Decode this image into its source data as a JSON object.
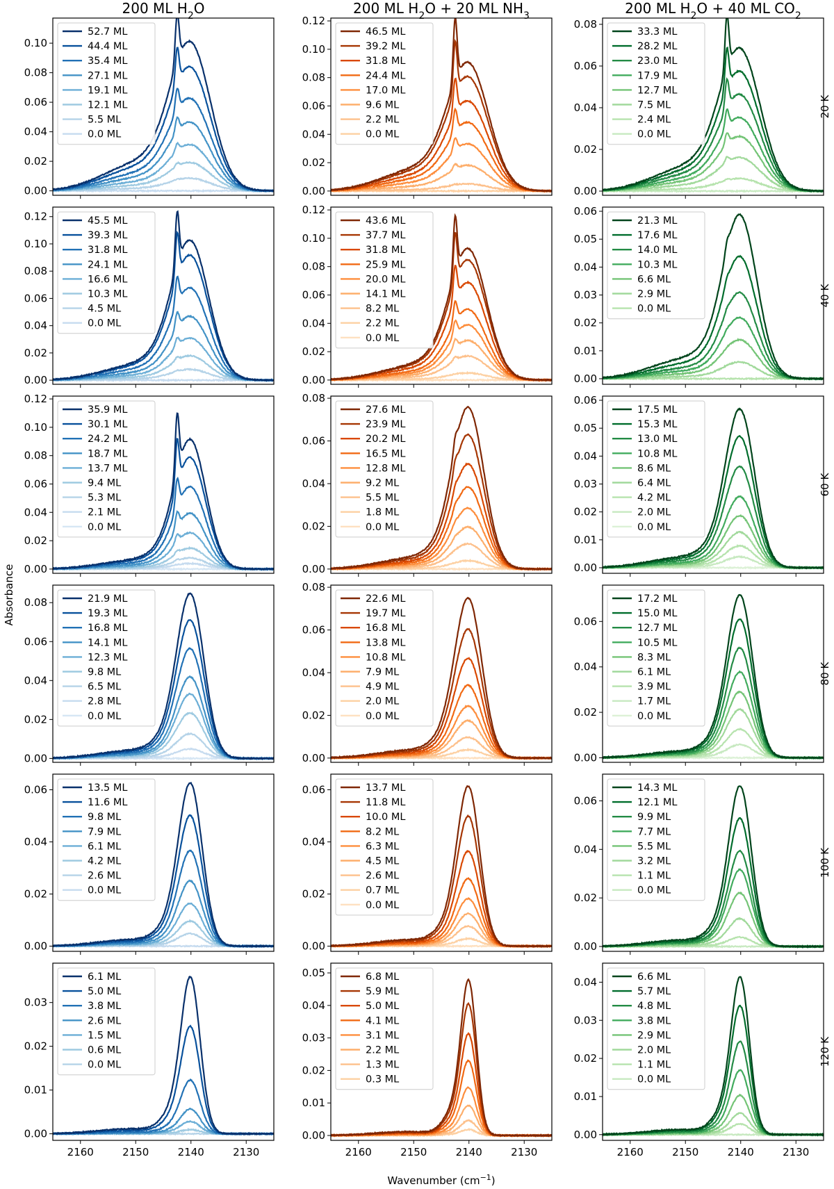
{
  "figure": {
    "column_titles": [
      {
        "pre": "200 ML H",
        "sub": "2",
        "post": "O"
      },
      {
        "pre": "200 ML H",
        "sub": "2",
        "post": "O + 20 ML NH",
        "sub2": "3",
        "post2": ""
      },
      {
        "pre": "200 ML H",
        "sub": "2",
        "post": "O + 40 ML CO",
        "sub2": "2",
        "post2": ""
      }
    ],
    "row_labels": [
      "20 K",
      "40 K",
      "60 K",
      "80 K",
      "100 K",
      "120 K"
    ],
    "xlabel": {
      "pre": "Wavenumber (cm",
      "sup": "−1",
      "post": ")"
    },
    "ylabel": "Absorbance",
    "xticks": [
      "2160",
      "2150",
      "2140",
      "2130"
    ]
  },
  "chart_data": {
    "type": "line",
    "x_axis": {
      "range": [
        2165,
        2125
      ],
      "ticks": [
        2160,
        2150,
        2140,
        2130
      ],
      "reversed": true,
      "units": "cm-1"
    },
    "palettes": {
      "blue": [
        "#08306b",
        "#08519c",
        "#2171b5",
        "#4292c6",
        "#6baed6",
        "#9ecae1",
        "#b5d3e8",
        "#c6dbef",
        "#d6e6f4"
      ],
      "orange": [
        "#7f2704",
        "#a63603",
        "#d94801",
        "#f16913",
        "#fd8d3c",
        "#fdae6b",
        "#fdc08b",
        "#fdd0a2",
        "#fee0c0"
      ],
      "green": [
        "#00441b",
        "#006d2c",
        "#238b45",
        "#41ab5d",
        "#74c476",
        "#a1d99b",
        "#b6e3ad",
        "#c7e9c0",
        "#dcf1d6"
      ]
    },
    "columns": [
      {
        "palette": "blue",
        "tag": "h2o"
      },
      {
        "palette": "orange",
        "tag": "nh3"
      },
      {
        "palette": "green",
        "tag": "co2"
      }
    ],
    "panels": [
      {
        "row": 0,
        "col": 0,
        "ylim": [
          -0.003,
          0.117
        ],
        "yticks": [
          "0.00",
          "0.02",
          "0.04",
          "0.06",
          "0.08",
          "0.10"
        ],
        "yvals": [
          0,
          0.02,
          0.04,
          0.06,
          0.08,
          0.1
        ],
        "legend": [
          "52.7 ML",
          "44.4 ML",
          "35.4 ML",
          "27.1 ML",
          "19.1 ML",
          "12.1 ML",
          "5.5 ML",
          "0.0 ML"
        ],
        "peaks": [
          0.1,
          0.083,
          0.062,
          0.046,
          0.031,
          0.019,
          0.0085,
          0.0
        ],
        "sharp_peak": 0.113,
        "shoulder_ratio": 0.2,
        "narrow": 1.0
      },
      {
        "row": 0,
        "col": 1,
        "ylim": [
          -0.003,
          0.122
        ],
        "yticks": [
          "0.00",
          "0.02",
          "0.04",
          "0.06",
          "0.08",
          "0.10",
          "0.12"
        ],
        "yvals": [
          0,
          0.02,
          0.04,
          0.06,
          0.08,
          0.1,
          0.12
        ],
        "legend": [
          "46.5 ML",
          "39.2 ML",
          "31.8 ML",
          "24.4 ML",
          "17.0 ML",
          "9.6 ML",
          "2.2 ML",
          "0.0 ML"
        ],
        "peaks": [
          0.09,
          0.08,
          0.063,
          0.048,
          0.033,
          0.018,
          0.005,
          0.0
        ],
        "sharp_peak": 0.116,
        "shoulder_ratio": 0.18,
        "narrow": 1.0
      },
      {
        "row": 0,
        "col": 2,
        "ylim": [
          -0.002,
          0.083
        ],
        "yticks": [
          "0.00",
          "0.02",
          "0.04",
          "0.06",
          "0.08"
        ],
        "yvals": [
          0,
          0.02,
          0.04,
          0.06,
          0.08
        ],
        "legend": [
          "33.3 ML",
          "28.2 ML",
          "23.0 ML",
          "17.9 ML",
          "12.7 ML",
          "7.5 ML",
          "2.4 ML",
          "0.0 ML"
        ],
        "peaks": [
          0.068,
          0.057,
          0.046,
          0.035,
          0.026,
          0.016,
          0.006,
          0.0
        ],
        "sharp_peak": 0.08,
        "shoulder_ratio": 0.18,
        "narrow": 1.0
      },
      {
        "row": 1,
        "col": 0,
        "ylim": [
          -0.003,
          0.127
        ],
        "yticks": [
          "0.00",
          "0.02",
          "0.04",
          "0.06",
          "0.08",
          "0.10",
          "0.12"
        ],
        "yvals": [
          0,
          0.02,
          0.04,
          0.06,
          0.08,
          0.1,
          0.12
        ],
        "legend": [
          "45.5 ML",
          "39.3 ML",
          "31.8 ML",
          "24.1 ML",
          "16.6 ML",
          "10.3 ML",
          "4.5 ML",
          "0.0 ML"
        ],
        "peaks": [
          0.103,
          0.092,
          0.068,
          0.047,
          0.031,
          0.018,
          0.008,
          0.0
        ],
        "sharp_peak": 0.122,
        "shoulder_ratio": 0.12,
        "narrow": 1.1
      },
      {
        "row": 1,
        "col": 1,
        "ylim": [
          -0.003,
          0.122
        ],
        "yticks": [
          "0.00",
          "0.02",
          "0.04",
          "0.06",
          "0.08",
          "0.10",
          "0.12"
        ],
        "yvals": [
          0,
          0.02,
          0.04,
          0.06,
          0.08,
          0.1,
          0.12
        ],
        "legend": [
          "43.6 ML",
          "37.7 ML",
          "31.8 ML",
          "25.9 ML",
          "20.0 ML",
          "14.1 ML",
          "8.2 ML",
          "2.2 ML",
          "0.0 ML"
        ],
        "peaks": [
          0.093,
          0.085,
          0.069,
          0.05,
          0.039,
          0.028,
          0.017,
          0.005,
          0.0
        ],
        "sharp_peak": 0.114,
        "shoulder_ratio": 0.12,
        "narrow": 1.1
      },
      {
        "row": 1,
        "col": 2,
        "ylim": [
          -0.002,
          0.0615
        ],
        "yticks": [
          "0.00",
          "0.01",
          "0.02",
          "0.03",
          "0.04",
          "0.05",
          "0.06"
        ],
        "yvals": [
          0,
          0.01,
          0.02,
          0.03,
          0.04,
          0.05,
          0.06
        ],
        "legend": [
          "21.3 ML",
          "17.6 ML",
          "14.0 ML",
          "10.3 ML",
          "6.6 ML",
          "2.9 ML",
          "0.0 ML"
        ],
        "peaks": [
          0.059,
          0.044,
          0.031,
          0.022,
          0.014,
          0.006,
          0.0
        ],
        "sharp_peak": 0.05,
        "shoulder_ratio": 0.14,
        "narrow": 1.2
      },
      {
        "row": 2,
        "col": 0,
        "ylim": [
          -0.003,
          0.122
        ],
        "yticks": [
          "0.00",
          "0.02",
          "0.04",
          "0.06",
          "0.08",
          "0.10",
          "0.12"
        ],
        "yvals": [
          0,
          0.02,
          0.04,
          0.06,
          0.08,
          0.1,
          0.12
        ],
        "legend": [
          "35.9 ML",
          "30.1 ML",
          "24.2 ML",
          "18.7 ML",
          "13.7 ML",
          "9.4 ML",
          "5.3 ML",
          "2.1 ML",
          "0.0 ML"
        ],
        "peaks": [
          0.093,
          0.08,
          0.059,
          0.04,
          0.026,
          0.015,
          0.008,
          0.004,
          0.0
        ],
        "sharp_peak": 0.116,
        "shoulder_ratio": 0.08,
        "narrow": 1.3
      },
      {
        "row": 2,
        "col": 1,
        "ylim": [
          -0.002,
          0.081
        ],
        "yticks": [
          "0.00",
          "0.02",
          "0.04",
          "0.06",
          "0.08"
        ],
        "yvals": [
          0,
          0.02,
          0.04,
          0.06,
          0.08
        ],
        "legend": [
          "27.6 ML",
          "23.9 ML",
          "20.2 ML",
          "16.5 ML",
          "12.8 ML",
          "9.2 ML",
          "5.5 ML",
          "1.8 ML",
          "0.0 ML"
        ],
        "peaks": [
          0.077,
          0.064,
          0.05,
          0.039,
          0.029,
          0.02,
          0.012,
          0.004,
          0.0
        ],
        "sharp_peak": 0.067,
        "shoulder_ratio": 0.08,
        "narrow": 1.3
      },
      {
        "row": 2,
        "col": 2,
        "ylim": [
          -0.002,
          0.0615
        ],
        "yticks": [
          "0.00",
          "0.01",
          "0.02",
          "0.03",
          "0.04",
          "0.05",
          "0.06"
        ],
        "yvals": [
          0,
          0.01,
          0.02,
          0.03,
          0.04,
          0.05,
          0.06
        ],
        "legend": [
          "17.5 ML",
          "15.3 ML",
          "13.0 ML",
          "10.8 ML",
          "8.6 ML",
          "6.4 ML",
          "4.2 ML",
          "2.0 ML",
          "0.0 ML"
        ],
        "peaks": [
          0.058,
          0.048,
          0.037,
          0.026,
          0.019,
          0.013,
          0.008,
          0.004,
          0.0
        ],
        "sharp_peak": 0.042,
        "shoulder_ratio": 0.08,
        "narrow": 1.4
      },
      {
        "row": 3,
        "col": 0,
        "ylim": [
          -0.002,
          0.089
        ],
        "yticks": [
          "0.00",
          "0.02",
          "0.04",
          "0.06",
          "0.08"
        ],
        "yvals": [
          0,
          0.02,
          0.04,
          0.06,
          0.08
        ],
        "legend": [
          "21.9 ML",
          "19.3 ML",
          "16.8 ML",
          "14.1 ML",
          "12.3 ML",
          "9.8 ML",
          "6.5 ML",
          "2.8 ML",
          "0.0 ML"
        ],
        "peaks": [
          0.087,
          0.073,
          0.058,
          0.043,
          0.034,
          0.024,
          0.013,
          0.005,
          0.0
        ],
        "sharp_peak": 0.068,
        "shoulder_ratio": 0.06,
        "narrow": 1.5
      },
      {
        "row": 3,
        "col": 1,
        "ylim": [
          -0.002,
          0.081
        ],
        "yticks": [
          "0.00",
          "0.02",
          "0.04",
          "0.06",
          "0.08"
        ],
        "yvals": [
          0,
          0.02,
          0.04,
          0.06,
          0.08
        ],
        "legend": [
          "22.6 ML",
          "19.7 ML",
          "16.8 ML",
          "13.8 ML",
          "10.8 ML",
          "7.9 ML",
          "4.9 ML",
          "2.0 ML",
          "0.0 ML"
        ],
        "peaks": [
          0.077,
          0.062,
          0.048,
          0.035,
          0.025,
          0.018,
          0.01,
          0.004,
          0.0
        ],
        "sharp_peak": 0.059,
        "shoulder_ratio": 0.06,
        "narrow": 1.5
      },
      {
        "row": 3,
        "col": 2,
        "ylim": [
          -0.002,
          0.076
        ],
        "yticks": [
          "0.00",
          "0.02",
          "0.04",
          "0.06"
        ],
        "yvals": [
          0,
          0.02,
          0.04,
          0.06
        ],
        "legend": [
          "17.2 ML",
          "15.0 ML",
          "12.7 ML",
          "10.5 ML",
          "8.3 ML",
          "6.1 ML",
          "3.9 ML",
          "1.7 ML",
          "0.0 ML"
        ],
        "peaks": [
          0.074,
          0.063,
          0.05,
          0.039,
          0.03,
          0.022,
          0.013,
          0.006,
          0.0
        ],
        "sharp_peak": 0.049,
        "shoulder_ratio": 0.05,
        "narrow": 1.6
      },
      {
        "row": 4,
        "col": 0,
        "ylim": [
          -0.002,
          0.066
        ],
        "yticks": [
          "0.00",
          "0.02",
          "0.04",
          "0.06"
        ],
        "yvals": [
          0,
          0.02,
          0.04,
          0.06
        ],
        "legend": [
          "13.5 ML",
          "11.6 ML",
          "9.8 ML",
          "7.9 ML",
          "6.1 ML",
          "4.2 ML",
          "2.6 ML",
          "0.0 ML"
        ],
        "peaks": [
          0.065,
          0.052,
          0.038,
          0.026,
          0.017,
          0.01,
          0.005,
          0.0
        ],
        "sharp_peak": 0.042,
        "shoulder_ratio": 0.05,
        "narrow": 1.7
      },
      {
        "row": 4,
        "col": 1,
        "ylim": [
          -0.002,
          0.066
        ],
        "yticks": [
          "0.00",
          "0.02",
          "0.04",
          "0.06"
        ],
        "yvals": [
          0,
          0.02,
          0.04,
          0.06
        ],
        "legend": [
          "13.7 ML",
          "11.8 ML",
          "10.0 ML",
          "8.2 ML",
          "6.3 ML",
          "4.5 ML",
          "2.6 ML",
          "0.7 ML",
          "0.0 ML"
        ],
        "peaks": [
          0.064,
          0.052,
          0.038,
          0.027,
          0.019,
          0.013,
          0.008,
          0.003,
          0.0
        ],
        "sharp_peak": 0.042,
        "shoulder_ratio": 0.05,
        "narrow": 1.8
      },
      {
        "row": 4,
        "col": 2,
        "ylim": [
          -0.002,
          0.071
        ],
        "yticks": [
          "0.00",
          "0.02",
          "0.04",
          "0.06"
        ],
        "yvals": [
          0,
          0.02,
          0.04,
          0.06
        ],
        "legend": [
          "14.3 ML",
          "12.1 ML",
          "9.9 ML",
          "7.7 ML",
          "5.5 ML",
          "3.2 ML",
          "1.1 ML",
          "0.0 ML"
        ],
        "peaks": [
          0.069,
          0.055,
          0.041,
          0.033,
          0.023,
          0.012,
          0.004,
          0.0
        ],
        "sharp_peak": 0.042,
        "shoulder_ratio": 0.05,
        "narrow": 1.8
      },
      {
        "row": 5,
        "col": 0,
        "ylim": [
          -0.0015,
          0.039
        ],
        "yticks": [
          "0.00",
          "0.01",
          "0.02",
          "0.03"
        ],
        "yvals": [
          0,
          0.01,
          0.02,
          0.03
        ],
        "legend": [
          "6.1 ML",
          "5.0 ML",
          "3.8 ML",
          "2.6 ML",
          "1.5 ML",
          "0.6 ML",
          "0.0 ML"
        ],
        "peaks": [
          0.038,
          0.026,
          0.013,
          0.006,
          0.003,
          0.001,
          0.0
        ],
        "sharp_peak": 0.022,
        "shoulder_ratio": 0.04,
        "narrow": 2.1
      },
      {
        "row": 5,
        "col": 1,
        "ylim": [
          -0.0015,
          0.053
        ],
        "yticks": [
          "0.00",
          "0.01",
          "0.02",
          "0.03",
          "0.04",
          "0.05"
        ],
        "yvals": [
          0,
          0.01,
          0.02,
          0.03,
          0.04,
          0.05
        ],
        "legend": [
          "6.8 ML",
          "5.9 ML",
          "5.0 ML",
          "4.1 ML",
          "3.1 ML",
          "2.2 ML",
          "1.3 ML",
          "0.3 ML"
        ],
        "peaks": [
          0.052,
          0.044,
          0.034,
          0.025,
          0.016,
          0.01,
          0.005,
          0.002
        ],
        "sharp_peak": 0.015,
        "shoulder_ratio": 0.03,
        "narrow": 2.6
      },
      {
        "row": 5,
        "col": 2,
        "ylim": [
          -0.0015,
          0.045
        ],
        "yticks": [
          "0.00",
          "0.01",
          "0.02",
          "0.03",
          "0.04"
        ],
        "yvals": [
          0,
          0.01,
          0.02,
          0.03,
          0.04
        ],
        "legend": [
          "6.6 ML",
          "5.7 ML",
          "4.8 ML",
          "3.8 ML",
          "2.9 ML",
          "2.0 ML",
          "1.1 ML",
          "0.0 ML"
        ],
        "peaks": [
          0.044,
          0.036,
          0.026,
          0.018,
          0.011,
          0.006,
          0.003,
          0.0
        ],
        "sharp_peak": 0.02,
        "shoulder_ratio": 0.04,
        "narrow": 2.2
      }
    ]
  }
}
